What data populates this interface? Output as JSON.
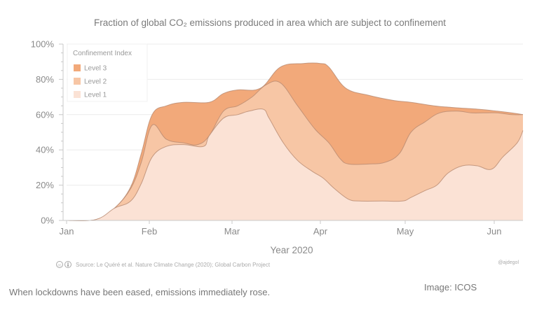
{
  "chart_data": {
    "type": "area",
    "stacked": true,
    "title": "Fraction of global CO₂ emissions produced in area which are subject to confinement",
    "xlabel": "Year 2020",
    "ylabel": "",
    "ylim": [
      0,
      100
    ],
    "y_ticks": [
      0,
      20,
      40,
      60,
      80,
      100
    ],
    "y_tick_labels": [
      "0%",
      "20%",
      "40%",
      "60%",
      "80%",
      "100%"
    ],
    "y_minor_tick_step": 5,
    "x_ticks": [
      0,
      31,
      60,
      91,
      121,
      152
    ],
    "x_tick_labels": [
      "Jan",
      "Feb",
      "Mar",
      "Apr",
      "May",
      "Jun"
    ],
    "xlim": [
      0,
      165
    ],
    "grid": true,
    "legend": {
      "title": "Confinement Index",
      "position": "top-left",
      "entries": [
        "Level 3",
        "Level 2",
        "Level 1"
      ]
    },
    "colors": {
      "Level 3": "#f2a97a",
      "Level 2": "#f7c6a5",
      "Level 1": "#fbe2d5",
      "outline": "#b88a70"
    },
    "series": [
      {
        "name": "Level 1",
        "cumulative_top": {
          "x": [
            0,
            11,
            18,
            24,
            28,
            32,
            37,
            43,
            50,
            52,
            57,
            62,
            66,
            71,
            73,
            78,
            83,
            88,
            92,
            96,
            101,
            105,
            113,
            120,
            123,
            128,
            132,
            136,
            141,
            146,
            151,
            155,
            160,
            165
          ],
          "y": [
            0,
            0.5,
            7,
            11,
            21,
            36,
            42,
            43,
            42,
            48,
            58,
            60,
            62,
            63,
            58,
            44,
            34,
            28,
            24,
            18,
            12,
            11,
            11,
            11,
            13,
            17,
            20,
            27,
            31,
            31,
            29,
            36,
            44,
            51
          ]
        }
      },
      {
        "name": "Level 2",
        "cumulative_top": {
          "x": [
            0,
            11,
            18,
            24,
            28,
            32,
            37,
            43,
            48,
            52,
            57,
            62,
            67,
            72,
            77,
            83,
            89,
            94,
            98,
            101,
            108,
            114,
            119,
            123,
            128,
            133,
            139,
            144,
            148,
            153,
            158,
            165
          ],
          "y": [
            0,
            0.5,
            7,
            18,
            33,
            54,
            46,
            44,
            43,
            48,
            62,
            65,
            70,
            77,
            78,
            65,
            52,
            44,
            35,
            32,
            32,
            33,
            38,
            50,
            56,
            61,
            62,
            61,
            61,
            61,
            60,
            60
          ]
        }
      },
      {
        "name": "Level 3",
        "cumulative_top": {
          "x": [
            0,
            11,
            18,
            24,
            28,
            32,
            37,
            43,
            52,
            57,
            62,
            70,
            77,
            85,
            91,
            94,
            100,
            108,
            117,
            123,
            131,
            138,
            147,
            153,
            158,
            165
          ],
          "y": [
            0,
            0.5,
            7,
            19,
            38,
            60,
            65,
            67,
            67,
            72,
            74,
            75,
            87,
            89,
            89,
            87,
            75,
            71,
            68,
            67,
            65,
            64,
            63,
            62,
            61,
            60
          ]
        }
      }
    ]
  },
  "source": "Source: Le Quéré et al. Nature Climate Change (2020); Global Carbon Project",
  "license_icons": [
    "cc-icon",
    "by-icon"
  ],
  "author_credit": "@ajdegol",
  "caption": "When lockdowns have been eased, emissions immediately rose.",
  "image_credit": "Image: ICOS"
}
